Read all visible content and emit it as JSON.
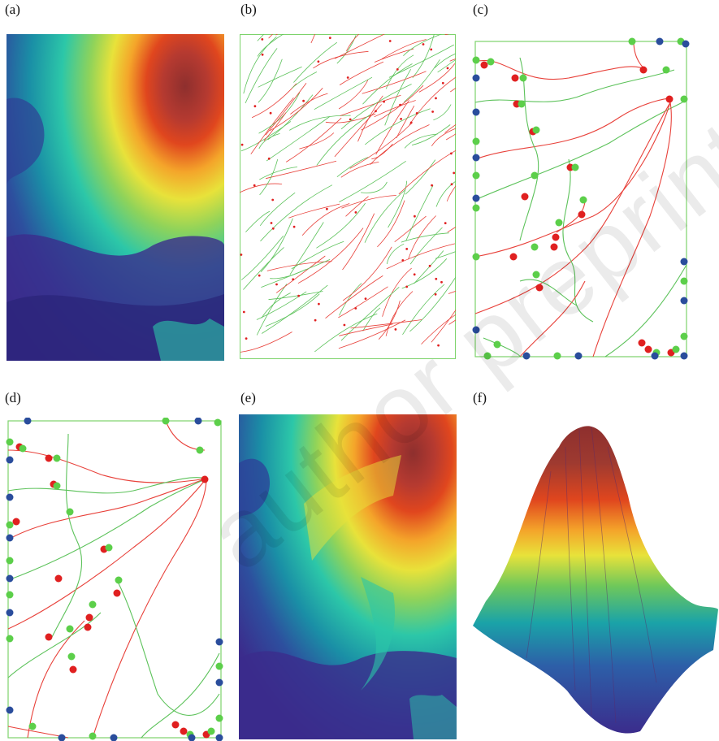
{
  "figure": {
    "panels": [
      {
        "id": "a",
        "label": "(a)"
      },
      {
        "id": "b",
        "label": "(b)"
      },
      {
        "id": "c",
        "label": "(c)"
      },
      {
        "id": "d",
        "label": "(d)"
      },
      {
        "id": "e",
        "label": "(e)"
      },
      {
        "id": "f",
        "label": "(f)"
      }
    ],
    "watermark": "author preprint",
    "colors": {
      "red_curve": "#e8413a",
      "green_curve": "#5cc25a",
      "red_node": "#e02020",
      "green_node": "#5ccf4a",
      "blue_node": "#2a4d9c",
      "frame": "#7dd36b"
    },
    "colormap": [
      "#3b2c8c",
      "#2d5fa8",
      "#1aa3a8",
      "#2cc7a8",
      "#8fd35a",
      "#e8e23a",
      "#f4a52a",
      "#e0461e",
      "#8e2f2e"
    ]
  }
}
